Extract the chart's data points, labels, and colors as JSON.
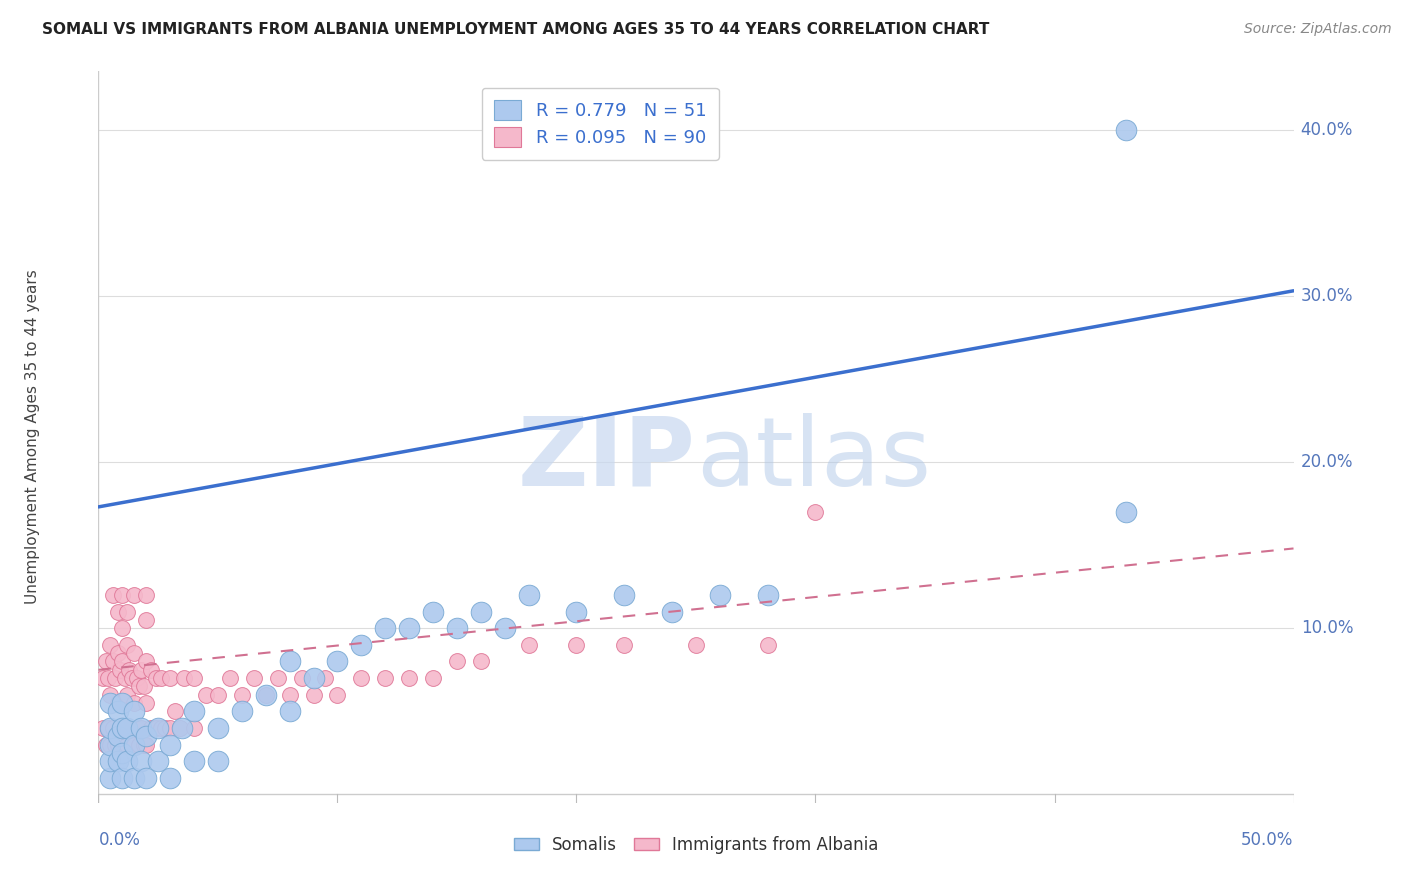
{
  "title": "SOMALI VS IMMIGRANTS FROM ALBANIA UNEMPLOYMENT AMONG AGES 35 TO 44 YEARS CORRELATION CHART",
  "source": "Source: ZipAtlas.com",
  "ylabel": "Unemployment Among Ages 35 to 44 years",
  "xlim": [
    0.0,
    0.5
  ],
  "ylim": [
    -0.005,
    0.435
  ],
  "legend_somalis": "Somalis",
  "legend_albania": "Immigrants from Albania",
  "R_somali": 0.779,
  "N_somali": 51,
  "R_albania": 0.095,
  "N_albania": 90,
  "somali_color": "#adc9ee",
  "somali_edge_color": "#7aaad4",
  "albania_color": "#f5b8cb",
  "albania_edge_color": "#e07898",
  "somali_line_color": "#3b6fce",
  "albania_line_color": "#d07090",
  "somali_line_y0": 0.173,
  "somali_line_y1": 0.303,
  "albania_line_y0": 0.075,
  "albania_line_y1": 0.148,
  "watermark_color": "#ccd8ee",
  "background_color": "#ffffff",
  "grid_color": "#dddddd",
  "axis_label_color": "#5577bb",
  "title_fontsize": 11,
  "source_fontsize": 10,
  "tick_label_fontsize": 12,
  "somali_x": [
    0.005,
    0.005,
    0.005,
    0.005,
    0.005,
    0.008,
    0.008,
    0.008,
    0.01,
    0.01,
    0.01,
    0.01,
    0.012,
    0.012,
    0.015,
    0.015,
    0.015,
    0.018,
    0.018,
    0.02,
    0.02,
    0.025,
    0.025,
    0.03,
    0.03,
    0.035,
    0.04,
    0.04,
    0.05,
    0.05,
    0.06,
    0.07,
    0.08,
    0.08,
    0.09,
    0.1,
    0.11,
    0.12,
    0.13,
    0.14,
    0.15,
    0.16,
    0.17,
    0.18,
    0.2,
    0.22,
    0.24,
    0.26,
    0.28,
    0.43,
    0.43
  ],
  "somali_y": [
    0.01,
    0.02,
    0.03,
    0.04,
    0.055,
    0.02,
    0.035,
    0.05,
    0.01,
    0.025,
    0.04,
    0.055,
    0.02,
    0.04,
    0.01,
    0.03,
    0.05,
    0.02,
    0.04,
    0.01,
    0.035,
    0.02,
    0.04,
    0.01,
    0.03,
    0.04,
    0.02,
    0.05,
    0.02,
    0.04,
    0.05,
    0.06,
    0.05,
    0.08,
    0.07,
    0.08,
    0.09,
    0.1,
    0.1,
    0.11,
    0.1,
    0.11,
    0.1,
    0.12,
    0.11,
    0.12,
    0.11,
    0.12,
    0.12,
    0.17,
    0.4
  ],
  "albania_x": [
    0.002,
    0.002,
    0.003,
    0.003,
    0.004,
    0.004,
    0.005,
    0.005,
    0.005,
    0.006,
    0.006,
    0.007,
    0.007,
    0.008,
    0.008,
    0.008,
    0.009,
    0.009,
    0.01,
    0.01,
    0.01,
    0.01,
    0.011,
    0.011,
    0.012,
    0.012,
    0.012,
    0.013,
    0.013,
    0.014,
    0.014,
    0.015,
    0.015,
    0.015,
    0.016,
    0.016,
    0.017,
    0.017,
    0.018,
    0.018,
    0.019,
    0.019,
    0.02,
    0.02,
    0.02,
    0.02,
    0.022,
    0.022,
    0.024,
    0.024,
    0.026,
    0.026,
    0.028,
    0.03,
    0.03,
    0.032,
    0.034,
    0.036,
    0.04,
    0.04,
    0.045,
    0.05,
    0.055,
    0.06,
    0.065,
    0.07,
    0.075,
    0.08,
    0.085,
    0.09,
    0.095,
    0.1,
    0.11,
    0.12,
    0.13,
    0.14,
    0.15,
    0.16,
    0.18,
    0.2,
    0.22,
    0.25,
    0.28,
    0.3,
    0.006,
    0.008,
    0.01,
    0.012,
    0.015,
    0.02
  ],
  "albania_y": [
    0.04,
    0.07,
    0.03,
    0.08,
    0.04,
    0.07,
    0.03,
    0.06,
    0.09,
    0.04,
    0.08,
    0.03,
    0.07,
    0.03,
    0.055,
    0.085,
    0.04,
    0.075,
    0.03,
    0.055,
    0.08,
    0.1,
    0.04,
    0.07,
    0.03,
    0.06,
    0.09,
    0.04,
    0.075,
    0.03,
    0.07,
    0.03,
    0.055,
    0.085,
    0.04,
    0.07,
    0.03,
    0.065,
    0.04,
    0.075,
    0.03,
    0.065,
    0.03,
    0.055,
    0.08,
    0.105,
    0.04,
    0.075,
    0.04,
    0.07,
    0.04,
    0.07,
    0.04,
    0.04,
    0.07,
    0.05,
    0.04,
    0.07,
    0.04,
    0.07,
    0.06,
    0.06,
    0.07,
    0.06,
    0.07,
    0.06,
    0.07,
    0.06,
    0.07,
    0.06,
    0.07,
    0.06,
    0.07,
    0.07,
    0.07,
    0.07,
    0.08,
    0.08,
    0.09,
    0.09,
    0.09,
    0.09,
    0.09,
    0.17,
    0.12,
    0.11,
    0.12,
    0.11,
    0.12,
    0.12
  ]
}
